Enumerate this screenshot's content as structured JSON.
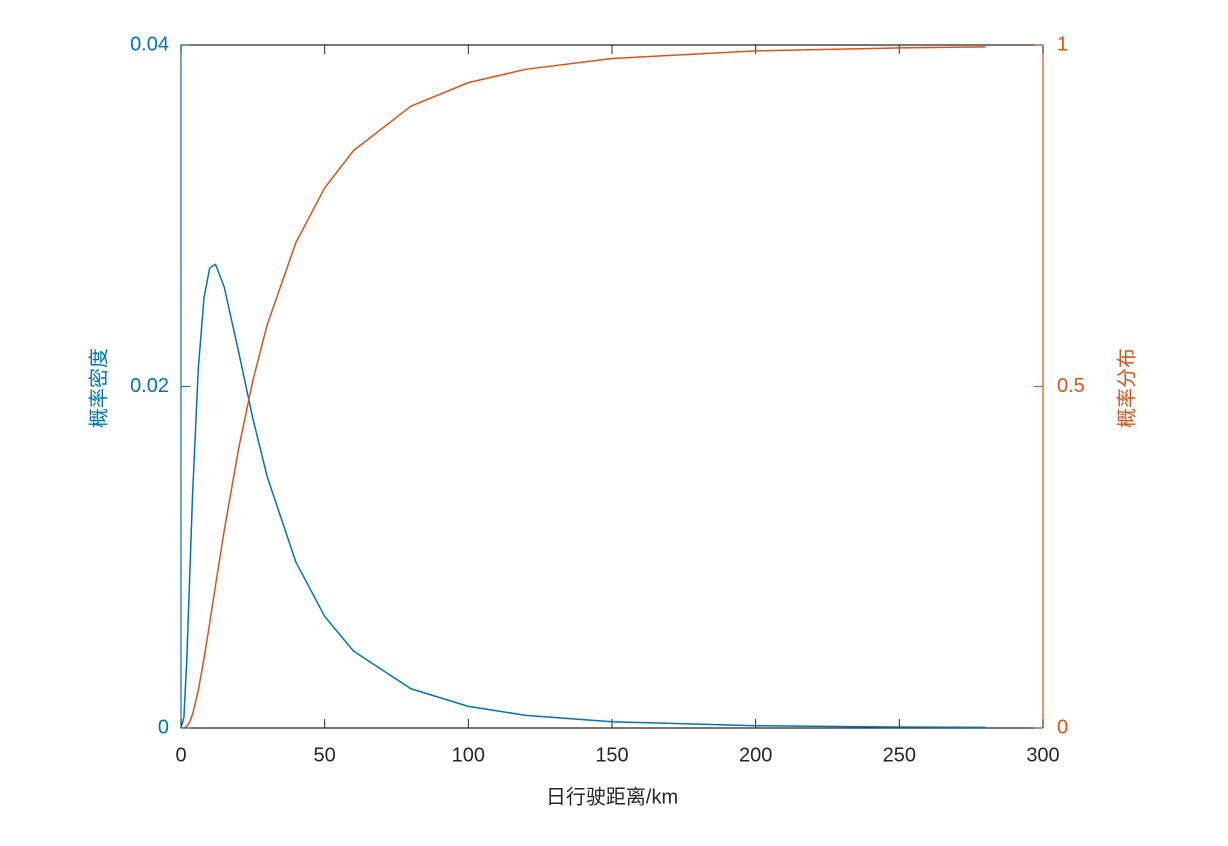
{
  "chart_data": {
    "type": "line",
    "xlabel": "日行驶距离/km",
    "ylabel": "概率密度",
    "y2label": "概率分布",
    "x": [
      0,
      1,
      2,
      3,
      4,
      6,
      8,
      10,
      12,
      15,
      20,
      25,
      30,
      40,
      50,
      60,
      80,
      100,
      120,
      150,
      200,
      250,
      280
    ],
    "series": [
      {
        "color": "#0072bd",
        "axis": "y",
        "values": [
          0,
          0.00061,
          0.00392,
          0.00873,
          0.01355,
          0.021,
          0.0252,
          0.02695,
          0.02716,
          0.02585,
          0.02207,
          0.01813,
          0.01472,
          0.00971,
          0.00654,
          0.00451,
          0.0023,
          0.001267,
          0.000742,
          0.000364,
          0.000132,
          5.6e-05,
          3.52e-05
        ]
      },
      {
        "color": "#d95319",
        "axis": "y2",
        "values": [
          0,
          0.00014,
          0.0022,
          0.0085,
          0.0197,
          0.0548,
          0.1015,
          0.1539,
          0.2082,
          0.288,
          0.408,
          0.5086,
          0.5905,
          0.7108,
          0.7907,
          0.8452,
          0.9104,
          0.9449,
          0.9644,
          0.9802,
          0.9914,
          0.9958,
          0.9972
        ]
      }
    ],
    "xlim": [
      0,
      300
    ],
    "xticks": [
      0,
      50,
      100,
      150,
      200,
      250,
      300
    ],
    "ylim": [
      0,
      0.04
    ],
    "yticks": [
      0,
      0.02,
      0.04
    ],
    "y2lim": [
      0,
      1
    ],
    "y2ticks": [
      0,
      0.5,
      1
    ],
    "ycolor": "#0072bd",
    "y2color": "#d95319",
    "grid": false
  }
}
